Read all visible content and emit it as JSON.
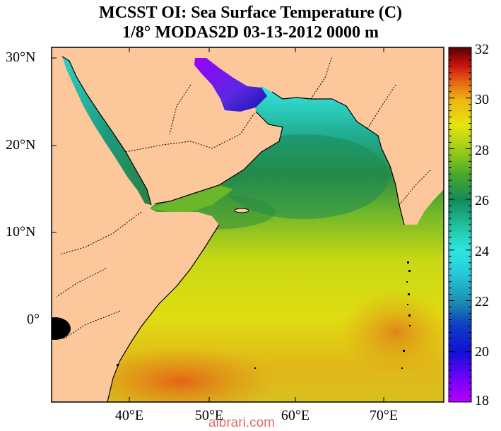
{
  "title_line1": "MCSST OI:  Sea Surface Temperature (C)",
  "title_line2": "1/8° MODAS2D 03-13-2012 0000 m",
  "lat_labels": [
    "30°N",
    "20°N",
    "10°N",
    "0°"
  ],
  "lon_labels": [
    "40°E",
    "50°E",
    "60°E",
    "70°E"
  ],
  "colorbar": {
    "min": 18,
    "max": 32,
    "tick_labels": [
      "32",
      "30",
      "28",
      "26",
      "24",
      "22",
      "20",
      "18"
    ]
  },
  "watermark": "albrari.com",
  "colors": {
    "land": "#fcc79b",
    "border": "#000000"
  }
}
